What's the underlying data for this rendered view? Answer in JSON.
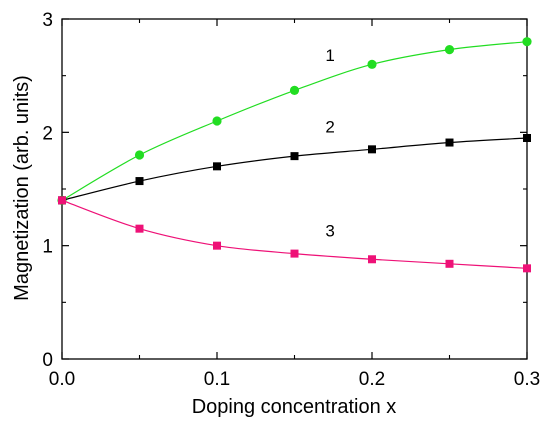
{
  "chart_data": {
    "type": "line",
    "title": "",
    "xlabel": "Doping concentration x",
    "ylabel": "Magnetization (arb. units)",
    "xlim": [
      0,
      0.3
    ],
    "ylim": [
      0,
      3
    ],
    "x_ticks": [
      0.0,
      0.1,
      0.2,
      0.3
    ],
    "x_tick_labels": [
      "0.0",
      "0.1",
      "0.2",
      "0.3"
    ],
    "y_ticks": [
      0,
      1,
      2,
      3
    ],
    "y_tick_labels": [
      "0",
      "1",
      "2",
      "3"
    ],
    "grid": false,
    "series": [
      {
        "label": "1",
        "color": "#22dd22",
        "marker": "circle",
        "x": [
          0.0,
          0.05,
          0.1,
          0.15,
          0.2,
          0.25,
          0.3
        ],
        "y": [
          1.4,
          1.8,
          2.1,
          2.37,
          2.6,
          2.73,
          2.8
        ]
      },
      {
        "label": "2",
        "color": "#000000",
        "marker": "square",
        "x": [
          0.0,
          0.05,
          0.1,
          0.15,
          0.2,
          0.25,
          0.3
        ],
        "y": [
          1.4,
          1.57,
          1.7,
          1.79,
          1.85,
          1.91,
          1.95
        ]
      },
      {
        "label": "3",
        "color": "#ee1177",
        "marker": "square",
        "x": [
          0.0,
          0.05,
          0.1,
          0.15,
          0.2,
          0.25,
          0.3
        ],
        "y": [
          1.4,
          1.15,
          1.0,
          0.93,
          0.88,
          0.84,
          0.8
        ]
      }
    ],
    "annotations": [
      {
        "text": "1",
        "x": 0.173,
        "y": 2.63
      },
      {
        "text": "2",
        "x": 0.173,
        "y": 2.0
      },
      {
        "text": "3",
        "x": 0.173,
        "y": 1.08
      }
    ]
  }
}
